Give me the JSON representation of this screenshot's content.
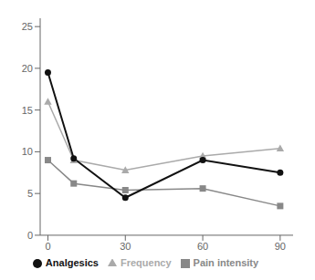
{
  "chart_data": {
    "type": "line",
    "x": [
      0,
      10,
      30,
      60,
      90
    ],
    "series": [
      {
        "name": "Pain intensity",
        "color": "#888888",
        "marker": "square",
        "values": [
          9.0,
          6.2,
          5.4,
          5.6,
          3.5
        ]
      },
      {
        "name": "Frequency",
        "color": "#aaaaaa",
        "marker": "triangle",
        "values": [
          16.0,
          9.0,
          7.8,
          9.5,
          10.4
        ]
      },
      {
        "name": "Analgesics",
        "color": "#111111",
        "marker": "circle",
        "values": [
          19.5,
          9.2,
          4.5,
          9.0,
          7.5
        ]
      }
    ],
    "xlim": [
      -3,
      95
    ],
    "xticks": [
      0,
      30,
      60,
      90
    ],
    "ylim": [
      0,
      26
    ],
    "yticks": [
      0,
      5,
      10,
      15,
      20,
      25
    ],
    "grid": false,
    "legend": "bottom"
  }
}
